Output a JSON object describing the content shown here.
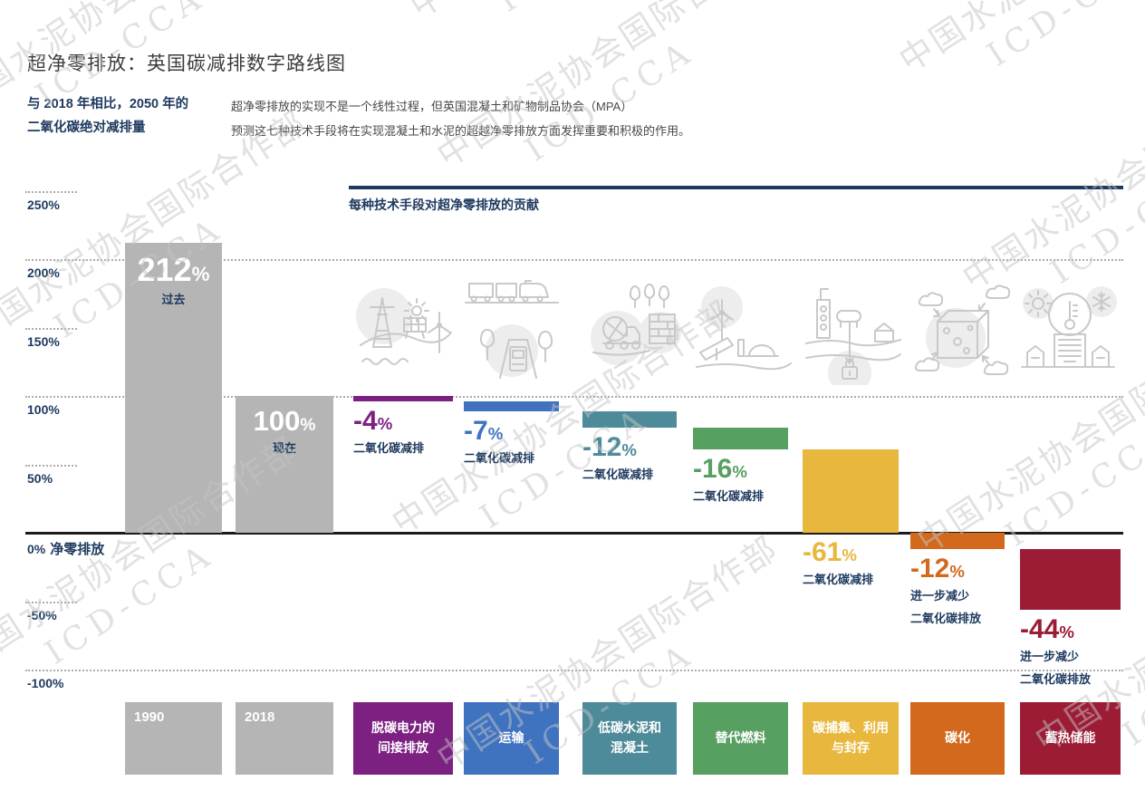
{
  "watermark": {
    "cn": "中国水泥协会国际合作部",
    "en": "ICD-CCA"
  },
  "header": {
    "subtitle_line1": "与 2018 年相比，2050 年的",
    "subtitle_line2": "二氧化碳绝对减排量",
    "description_line1": "超净零排放的实现不是一个线性过程，但英国混凝土和矿物制品协会（MPA）",
    "description_line2": "预测这七种技术手段将在实现混凝土和水泥的超越净零排放方面发挥重要和积极的作用。"
  },
  "chart_data": {
    "type": "bar",
    "subtype": "waterfall",
    "title": "超净零排放：英国碳减排数字路线图",
    "contribution_label": "每种技术手段对超净零排放的贡献",
    "ylabel": "",
    "ylim": [
      -100,
      250
    ],
    "unit": "%",
    "waterfall_start": 100,
    "yticks": [
      {
        "label": "250%",
        "value": 250,
        "full_width": false,
        "solid": false
      },
      {
        "label": "200%",
        "value": 200,
        "full_width": true,
        "solid": false
      },
      {
        "label": "150%",
        "value": 150,
        "full_width": false,
        "solid": false
      },
      {
        "label": "100%",
        "value": 100,
        "full_width": true,
        "solid": false
      },
      {
        "label": "50%",
        "value": 50,
        "full_width": false,
        "solid": false
      },
      {
        "label": "0%",
        "value": 0,
        "full_width": true,
        "solid": true,
        "suffix": "净零排放"
      },
      {
        "label": "-50%",
        "value": -50,
        "full_width": false,
        "solid": false
      },
      {
        "label": "-100%",
        "value": -100,
        "full_width": true,
        "solid": false
      }
    ],
    "columns": [
      {
        "id": "past-1990",
        "legend_lines": [
          "1990"
        ],
        "kind": "absolute",
        "value": 212,
        "value_label": "212",
        "unit": "%",
        "sublabel_lines": [
          "过去"
        ],
        "color": "#b5b5b6",
        "label_inside": true,
        "legend_align": "top-left",
        "big_size": 36
      },
      {
        "id": "present-2018",
        "legend_lines": [
          "2018"
        ],
        "kind": "absolute",
        "value": 100,
        "value_label": "100",
        "unit": "%",
        "sublabel_lines": [
          "现在"
        ],
        "color": "#b5b5b6",
        "label_inside": true,
        "legend_align": "top-left",
        "big_size": 31
      },
      {
        "id": "decarbonised-electricity",
        "legend_lines": [
          "脱碳电力的",
          "间接排放"
        ],
        "kind": "reduction",
        "value": -4,
        "value_label": "-4",
        "unit": "%",
        "sublabel_lines": [
          "二氧化碳减排"
        ],
        "color": "#7c2182",
        "label_inside": false,
        "legend_align": "center",
        "big_size": 30
      },
      {
        "id": "transport",
        "legend_lines": [
          "运输"
        ],
        "kind": "reduction",
        "value": -7,
        "value_label": "-7",
        "unit": "%",
        "sublabel_lines": [
          "二氧化碳减排"
        ],
        "color": "#3f73c0",
        "label_inside": false,
        "legend_align": "center",
        "big_size": 30
      },
      {
        "id": "low-carbon-cement-concrete",
        "legend_lines": [
          "低碳水泥和",
          "混凝土"
        ],
        "kind": "reduction",
        "value": -12,
        "value_label": "-12",
        "unit": "%",
        "sublabel_lines": [
          "二氧化碳减排"
        ],
        "color": "#4e8b9a",
        "label_inside": false,
        "legend_align": "center",
        "big_size": 30
      },
      {
        "id": "alternative-fuels",
        "legend_lines": [
          "替代燃料"
        ],
        "kind": "reduction",
        "value": -16,
        "value_label": "-16",
        "unit": "%",
        "sublabel_lines": [
          "二氧化碳减排"
        ],
        "color": "#58a061",
        "label_inside": false,
        "legend_align": "center",
        "big_size": 30
      },
      {
        "id": "carbon-capture-use-storage",
        "legend_lines": [
          "碳捕集、利用",
          "与封存"
        ],
        "kind": "reduction",
        "value": -61,
        "value_label": "-61",
        "unit": "%",
        "sublabel_lines": [
          "二氧化碳减排"
        ],
        "color": "#e8b73d",
        "label_inside": false,
        "legend_align": "center",
        "big_size": 30
      },
      {
        "id": "carbonation",
        "legend_lines": [
          "碳化"
        ],
        "kind": "reduction",
        "value": -12,
        "value_label": "-12",
        "unit": "%",
        "sublabel_lines": [
          "进一步减少",
          "二氧化碳排放"
        ],
        "color": "#d2691d",
        "label_inside": false,
        "legend_align": "center",
        "big_size": 30
      },
      {
        "id": "thermal-storage",
        "legend_lines": [
          "蓄热储能"
        ],
        "kind": "reduction",
        "value": -44,
        "value_label": "-44",
        "unit": "%",
        "sublabel_lines": [
          "进一步减少",
          "二氧化碳排放"
        ],
        "color": "#9c1c36",
        "label_inside": false,
        "legend_align": "center",
        "big_size": 30
      }
    ],
    "icon_names": [
      "electricity-grid-icon",
      "freight-transport-icon",
      "cement-concrete-icon",
      "alternative-fuels-icon",
      "carbon-capture-icon",
      "carbonation-icon",
      "thermal-storage-icon"
    ],
    "colors": {
      "navy": "#1e3a5f",
      "grid": "#ababab",
      "zero_line": "#1b1b1b",
      "bar_gray": "#b5b5b6"
    }
  }
}
